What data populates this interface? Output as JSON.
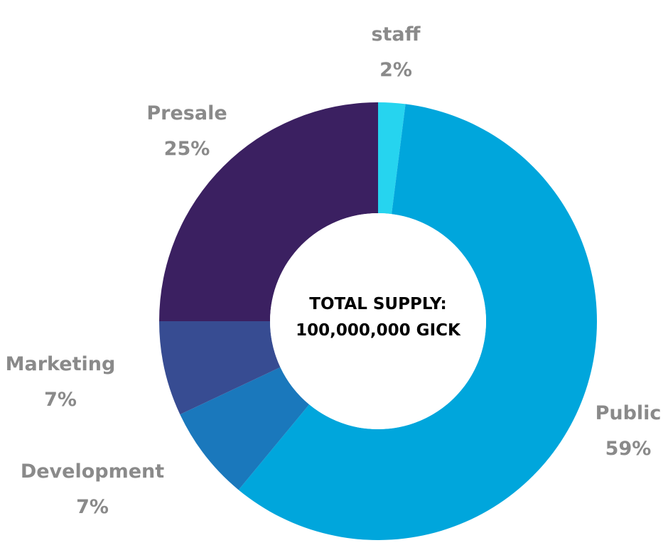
{
  "chart_data": {
    "type": "pie",
    "variant": "donut",
    "center_label": [
      "TOTAL SUPPLY:",
      "100,000,000 GICK"
    ],
    "label_color": "#8a8a8a",
    "start": "top",
    "direction": "clockwise",
    "slices": [
      {
        "name": "staff",
        "value": 2,
        "label": "2%",
        "color": "#26d4ef"
      },
      {
        "name": "Public",
        "value": 59,
        "label": "59%",
        "color": "#00a6dc"
      },
      {
        "name": "Development",
        "value": 7,
        "label": "7%",
        "color": "#1a78bc"
      },
      {
        "name": "Marketing",
        "value": 7,
        "label": "7%",
        "color": "#374c92"
      },
      {
        "name": "Presale",
        "value": 25,
        "label": "25%",
        "color": "#3b2061"
      }
    ]
  }
}
